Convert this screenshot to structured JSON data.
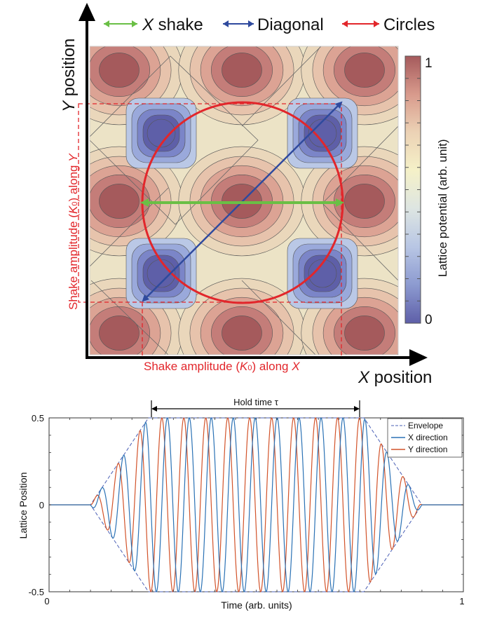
{
  "top_panel": {
    "legend": [
      {
        "var": "X",
        "text": " shake",
        "color": "#6abf45"
      },
      {
        "var": "",
        "text": "Diagonal",
        "color": "#2f4a9e"
      },
      {
        "var": "",
        "text": "Circles",
        "color": "#e2262b"
      }
    ],
    "y_axis": {
      "var": "Y",
      "text": " position"
    },
    "x_axis": {
      "var": "X",
      "text": " position"
    },
    "amp_y": {
      "prefix": "Shake amplitude (",
      "sym": "K",
      "sub": "0",
      "mid": ") along ",
      "var": "Y"
    },
    "amp_x": {
      "prefix": "Shake amplitude (",
      "sym": "K",
      "sub": "0",
      "mid": ") along ",
      "var": "X"
    },
    "colorbar": {
      "label": "Lattice potential (arb. unit)",
      "max_label": "1",
      "min_label": "0",
      "stops": [
        "#5e5fa8",
        "#8c9ad0",
        "#b8c6e4",
        "#dde5e2",
        "#f5f1c8",
        "#ecd2b5",
        "#d89a8c",
        "#a55a5c"
      ]
    },
    "colors": {
      "red": "#e2262b",
      "blue": "#2f4a9e",
      "green": "#6abf45"
    }
  },
  "chart_data": {
    "type": "line",
    "xlabel": "Time (arb. units)",
    "ylabel": "Lattice Position",
    "xlim": [
      0,
      1
    ],
    "ylim": [
      -0.5,
      0.5
    ],
    "xticks": [
      "0",
      "1"
    ],
    "yticks": [
      "0.5",
      "0",
      "-0.5"
    ],
    "annotation": "Hold time τ",
    "hold_window": [
      0.24,
      0.76
    ],
    "ramp_window": [
      0.1,
      0.9
    ],
    "oscillation_period": 0.053,
    "legend_position": "top-right",
    "series": [
      {
        "name": "Envelope",
        "color": "#4a5fb5",
        "style": "dashed"
      },
      {
        "name": "X direction",
        "color": "#2b72b5",
        "style": "solid"
      },
      {
        "name": "Y direction",
        "color": "#d2532a",
        "style": "solid"
      }
    ]
  }
}
